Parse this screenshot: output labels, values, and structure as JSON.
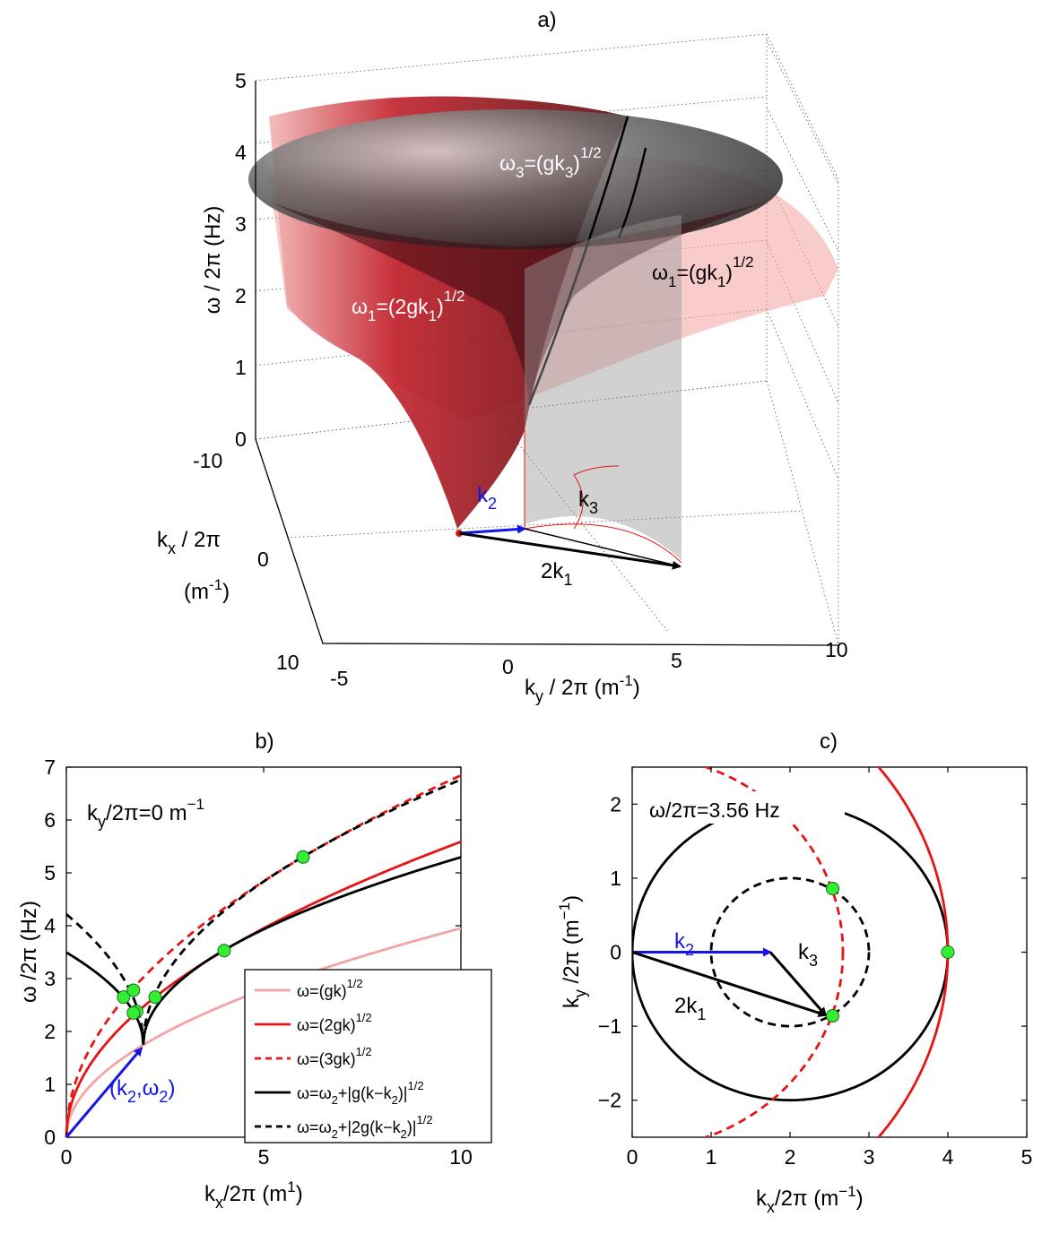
{
  "colors": {
    "light_red": "#f4a3a3",
    "red": "#e61414",
    "black": "#000000",
    "blue": "#1414e6",
    "green": "#33ee33"
  },
  "chart_data": [
    {
      "panel": "a",
      "type": "surface3d",
      "title": "a)",
      "xlabel": "k",
      "xlabel_sub": "y",
      "xlabel_rest": " / 2π (m",
      "xlabel_sup": "-1",
      "xlabel_end": ")",
      "ylabel_line1_base": "k",
      "ylabel_line1_sub": "x",
      "ylabel_line1_rest": " / 2π",
      "ylabel_line2_base": "(m",
      "ylabel_line2_sup": "-1",
      "ylabel_line2_end": ")",
      "zlabel": "ω / 2π (Hz)",
      "ky_ticks": [
        "-5",
        "0",
        "5",
        "10"
      ],
      "kx_ticks": [
        "-10",
        "0",
        "10"
      ],
      "z_ticks": [
        "0",
        "1",
        "2",
        "3",
        "4",
        "5"
      ],
      "zlim": [
        0,
        5
      ],
      "surfaces": [
        {
          "name": "ω₁=(2gk₁)¹ᐟ²",
          "color": "#8b0d12"
        },
        {
          "name": "ω₁=(gk₁)¹ᐟ²",
          "color": "#f4a3a3"
        },
        {
          "name": "ω₃=(gk₃)¹ᐟ²",
          "color": "#333333"
        }
      ],
      "annotations": {
        "omega3": {
          "base": "ω",
          "sub": "3",
          "rest": "=(gk",
          "sub2": "3",
          "end": ")",
          "sup": "1/2"
        },
        "omega1_red": {
          "base": "ω",
          "sub": "1",
          "rest": "=(2gk",
          "sub2": "1",
          "end": ")",
          "sup": "1/2"
        },
        "omega1_light": {
          "base": "ω",
          "sub": "1",
          "rest": "=(gk",
          "sub2": "1",
          "end": ")",
          "sup": "1/2"
        },
        "k2": {
          "base": "k",
          "sub": "2"
        },
        "k3": {
          "base": "k",
          "sub": "3"
        },
        "two_k1": {
          "base": "2k",
          "sub": "1"
        }
      }
    },
    {
      "panel": "b",
      "type": "line",
      "title": "b)",
      "xlabel_base": "k",
      "xlabel_sub": "x",
      "xlabel_rest": "/2π (m",
      "xlabel_sup": "1",
      "xlabel_end": ")",
      "ylabel": "ω /2π (Hz)",
      "xlim": [
        0,
        10
      ],
      "ylim": [
        0,
        7
      ],
      "xticks": [
        0,
        5,
        10
      ],
      "yticks": [
        0,
        1,
        2,
        3,
        4,
        5,
        6,
        7
      ],
      "inset_text": {
        "base": "k",
        "sub": "y",
        "rest": "/2π=0 m",
        "sup": "−1"
      },
      "k2": 1.95,
      "omega2": 1.75,
      "vector_label": {
        "open": "(k",
        "sub1": "2",
        "mid": ",ω",
        "sub2": "2",
        "close": ")"
      },
      "series": [
        {
          "name": "ω=(gk)",
          "sup": "1/2",
          "color": "#f4a3a3",
          "style": "solid",
          "formula": "sqrt(g k)"
        },
        {
          "name": "ω=(2gk)",
          "sup": "1/2",
          "color": "#e61414",
          "style": "solid",
          "formula": "sqrt(2 g k)"
        },
        {
          "name": "ω=(3gk)",
          "sup": "1/2",
          "color": "#e61414",
          "style": "dashed",
          "formula": "sqrt(3 g k)"
        },
        {
          "name": "ω=ω",
          "name_sub": "2",
          "name_rest": "+|g(k−k",
          "name_sub2": "2",
          "name_end": ")|",
          "sup": "1/2",
          "color": "#000000",
          "style": "solid",
          "formula": "omega2 + sqrt(g|k-k2|)"
        },
        {
          "name": "ω=ω",
          "name_sub": "2",
          "name_rest": "+|2g(k−k",
          "name_sub2": "2",
          "name_end": ")|",
          "sup": "1/2",
          "color": "#000000",
          "style": "dashed",
          "formula": "omega2 + sqrt(2g|k-k2|)"
        }
      ],
      "points": [
        {
          "x": 1.45,
          "y": 2.65
        },
        {
          "x": 1.7,
          "y": 2.78
        },
        {
          "x": 1.78,
          "y": 2.38
        },
        {
          "x": 1.7,
          "y": 2.35
        },
        {
          "x": 2.25,
          "y": 2.65
        },
        {
          "x": 4.0,
          "y": 3.53
        },
        {
          "x": 6.0,
          "y": 5.3
        }
      ]
    },
    {
      "panel": "c",
      "type": "line",
      "title": "c)",
      "xlabel_base": "k",
      "xlabel_sub": "x",
      "xlabel_rest": "/2π (m",
      "xlabel_sup": "−1",
      "xlabel_end": ")",
      "ylabel_base": "k",
      "ylabel_sub": "y",
      "ylabel_rest": " /2π (m",
      "ylabel_sup": "−1",
      "ylabel_end": ")",
      "xlim": [
        0,
        5
      ],
      "ylim": [
        -2.5,
        2.5
      ],
      "xticks": [
        0,
        1,
        2,
        3,
        4,
        5
      ],
      "yticks": [
        -2,
        -1,
        0,
        1,
        2
      ],
      "inset_text": "ω/2π=3.56 Hz",
      "circles": [
        {
          "cx": 2,
          "cy": 0,
          "r": 2,
          "color": "#000000",
          "style": "solid"
        },
        {
          "cx": 2,
          "cy": 0,
          "r": 1,
          "color": "#000000",
          "style": "dashed"
        },
        {
          "cx": 0,
          "cy": 0,
          "r": 4,
          "color": "#e61414",
          "style": "solid"
        },
        {
          "cx": 0,
          "cy": 0,
          "r": 2.67,
          "color": "#e61414",
          "style": "dashed"
        }
      ],
      "vectors": [
        {
          "from": [
            0,
            0
          ],
          "to": [
            1.75,
            0
          ],
          "color": "#1414e6",
          "label_base": "k",
          "label_sub": "2"
        },
        {
          "from": [
            1.75,
            0
          ],
          "to": [
            2.45,
            -0.85
          ],
          "color": "#000000",
          "label_base": "k",
          "label_sub": "3"
        },
        {
          "from": [
            0,
            0
          ],
          "to": [
            2.45,
            -0.85
          ],
          "color": "#000000",
          "label_base": "2k",
          "label_sub": "1"
        }
      ],
      "points": [
        {
          "x": 4.0,
          "y": 0.0
        },
        {
          "x": 2.54,
          "y": 0.86
        },
        {
          "x": 2.54,
          "y": -0.86
        }
      ]
    }
  ]
}
